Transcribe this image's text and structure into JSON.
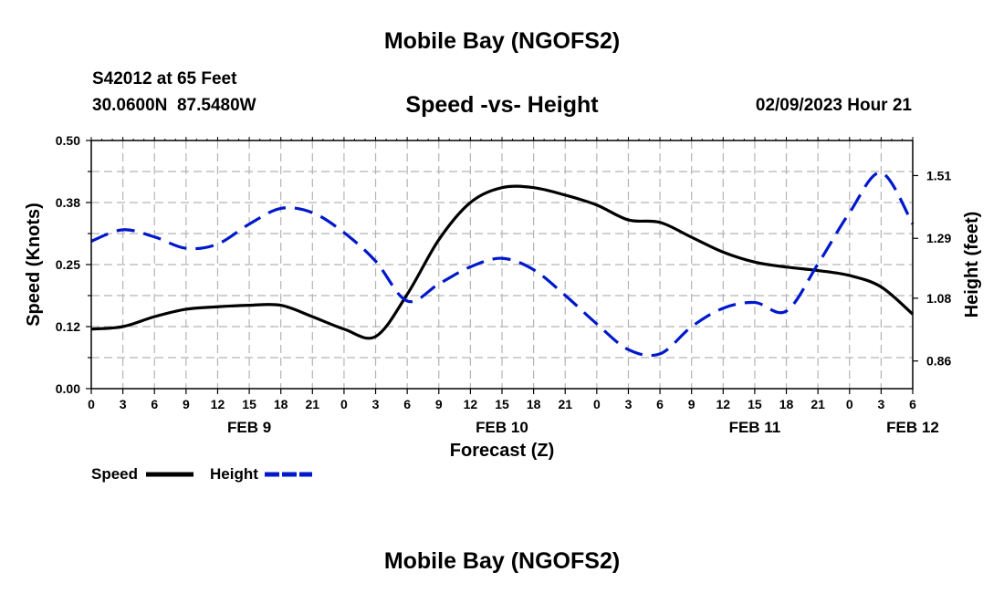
{
  "header": {
    "title": "Mobile Bay (NGOFS2)",
    "station": "S42012 at 65 Feet",
    "coords": "30.0600N  87.5480W",
    "subtitle": "Speed -vs- Height",
    "datetime": "02/09/2023 Hour 21"
  },
  "footer": {
    "title": "Mobile Bay (NGOFS2)"
  },
  "chart_data": {
    "type": "line",
    "xlabel": "Forecast (Z)",
    "ylabel": "Speed (Knots)",
    "y2label": "Height (feet)",
    "x_tick_labels": [
      "0",
      "3",
      "6",
      "9",
      "12",
      "15",
      "18",
      "21",
      "0",
      "3",
      "6",
      "9",
      "12",
      "15",
      "18",
      "21",
      "0",
      "3",
      "6",
      "9",
      "12",
      "15",
      "18",
      "21",
      "0",
      "3",
      "6"
    ],
    "day_labels": [
      {
        "text": "FEB 9",
        "hour": 15
      },
      {
        "text": "FEB 10",
        "hour": 39
      },
      {
        "text": "FEB 11",
        "hour": 63
      },
      {
        "text": "FEB 12",
        "hour": 78
      }
    ],
    "xlim": [
      0,
      78
    ],
    "ylim": [
      0,
      0.5
    ],
    "y_ticks": [
      "0.00",
      "0.12",
      "0.25",
      "0.38",
      "0.50"
    ],
    "y2lim": [
      0.763,
      1.633
    ],
    "y2_ticks": [
      "0.86",
      "1.08",
      "1.29",
      "1.51"
    ],
    "grid": true,
    "legend_position": "bottom-left",
    "series": [
      {
        "name": "Speed",
        "axis": "left",
        "color": "#000000",
        "style": "solid",
        "x": [
          0,
          3,
          6,
          9,
          12,
          15,
          18,
          21,
          24,
          27,
          30,
          33,
          36,
          39,
          42,
          45,
          48,
          51,
          54,
          57,
          60,
          63,
          66,
          69,
          72,
          75,
          78
        ],
        "y": [
          0.12,
          0.125,
          0.145,
          0.16,
          0.165,
          0.168,
          0.168,
          0.145,
          0.12,
          0.105,
          0.19,
          0.3,
          0.375,
          0.405,
          0.405,
          0.39,
          0.37,
          0.34,
          0.335,
          0.305,
          0.275,
          0.255,
          0.245,
          0.238,
          0.228,
          0.205,
          0.15
        ]
      },
      {
        "name": "Height",
        "axis": "right",
        "color": "#0018cc",
        "style": "dashed",
        "x": [
          0,
          3,
          6,
          9,
          12,
          15,
          18,
          21,
          24,
          27,
          30,
          33,
          36,
          39,
          42,
          45,
          48,
          51,
          54,
          57,
          60,
          63,
          66,
          69,
          72,
          75,
          78
        ],
        "y": [
          1.28,
          1.32,
          1.295,
          1.255,
          1.27,
          1.34,
          1.395,
          1.38,
          1.31,
          1.21,
          1.07,
          1.13,
          1.19,
          1.22,
          1.18,
          1.09,
          0.99,
          0.9,
          0.885,
          0.98,
          1.045,
          1.065,
          1.035,
          1.2,
          1.38,
          1.52,
          1.34
        ]
      }
    ]
  }
}
